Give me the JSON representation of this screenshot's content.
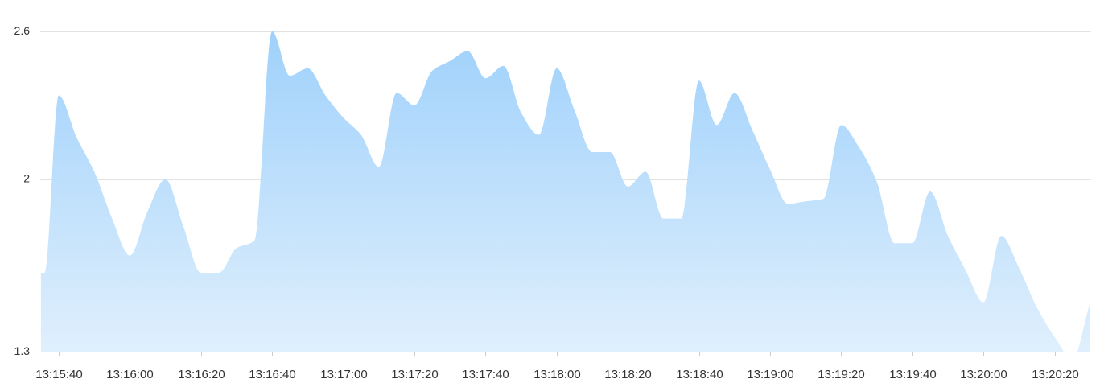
{
  "chart_data": {
    "type": "area",
    "title": "",
    "xlabel": "",
    "ylabel": "",
    "grid": true,
    "legend": "none",
    "colors": {
      "area_top": "#9fd1fb",
      "area_bottom": "#e1f0fd",
      "grid": "#e2e2e2",
      "axis": "#dddddd",
      "text": "#333333"
    },
    "x_ticks": [
      "13:15:40",
      "13:16:00",
      "13:16:20",
      "13:16:40",
      "13:17:00",
      "13:17:20",
      "13:17:40",
      "13:18:00",
      "13:18:20",
      "13:18:40",
      "13:19:00",
      "13:19:20",
      "13:19:40",
      "13:20:00",
      "13:20:20"
    ],
    "y_ticks": [
      {
        "value": 2.6,
        "label": "2.6"
      },
      {
        "value": 2.0,
        "label": "2"
      },
      {
        "value": 1.3,
        "label": "1.3"
      }
    ],
    "ylim": [
      1.3,
      2.6
    ],
    "xlim": [
      "13:15:35",
      "13:20:30"
    ],
    "series": [
      {
        "x": [
          "13:15:35",
          "13:15:36",
          "13:15:40",
          "13:15:45",
          "13:15:50",
          "13:15:55",
          "13:16:00",
          "13:16:05",
          "13:16:10",
          "13:16:15",
          "13:16:20",
          "13:16:25",
          "13:16:30",
          "13:16:35",
          "13:16:40",
          "13:16:45",
          "13:16:50",
          "13:16:55",
          "13:17:00",
          "13:17:05",
          "13:17:10",
          "13:17:15",
          "13:17:20",
          "13:17:25",
          "13:17:30",
          "13:17:35",
          "13:17:40",
          "13:17:45",
          "13:17:50",
          "13:17:55",
          "13:18:00",
          "13:18:05",
          "13:18:10",
          "13:18:15",
          "13:18:20",
          "13:18:25",
          "13:18:30",
          "13:18:35",
          "13:18:40",
          "13:18:45",
          "13:18:50",
          "13:18:55",
          "13:19:00",
          "13:19:05",
          "13:19:10",
          "13:19:15",
          "13:19:20",
          "13:19:25",
          "13:19:30",
          "13:19:35",
          "13:19:40",
          "13:19:45",
          "13:19:50",
          "13:19:55",
          "13:20:00",
          "13:20:05",
          "13:20:10",
          "13:20:15",
          "13:20:20",
          "13:20:25",
          "13:20:30"
        ],
        "values": [
          1.62,
          1.62,
          2.34,
          2.17,
          2.03,
          1.84,
          1.69,
          1.87,
          2.0,
          1.81,
          1.62,
          1.62,
          1.72,
          1.75,
          2.6,
          2.42,
          2.45,
          2.34,
          2.25,
          2.18,
          2.05,
          2.35,
          2.3,
          2.44,
          2.48,
          2.52,
          2.41,
          2.46,
          2.27,
          2.18,
          2.45,
          2.28,
          2.11,
          2.11,
          1.97,
          2.03,
          1.84,
          1.84,
          2.4,
          2.22,
          2.35,
          2.2,
          2.04,
          1.9,
          1.91,
          1.92,
          2.22,
          2.13,
          1.99,
          1.74,
          1.74,
          1.95,
          1.77,
          1.63,
          1.5,
          1.77,
          1.64,
          1.48,
          1.36,
          1.27,
          1.5
        ]
      }
    ]
  }
}
